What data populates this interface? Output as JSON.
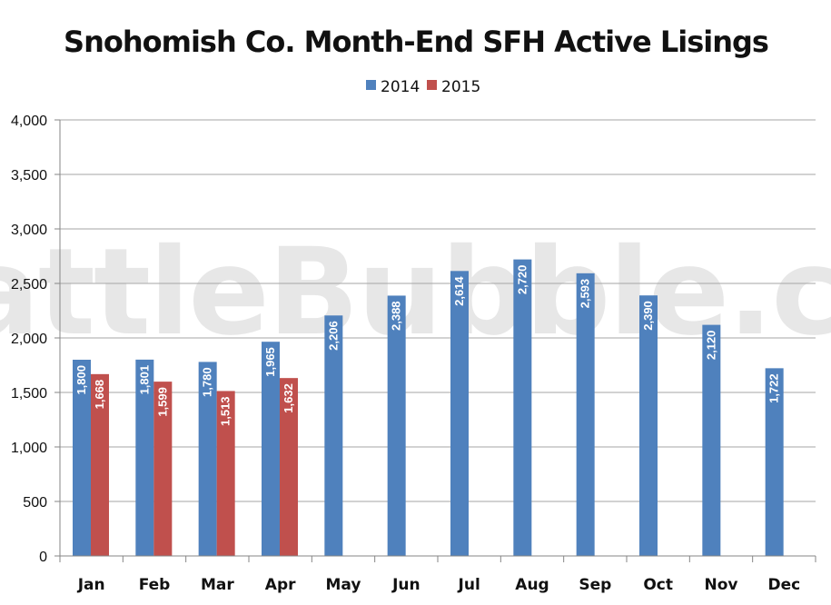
{
  "chart_data": {
    "type": "bar",
    "title": "Snohomish Co. Month-End SFH Active Lisings",
    "watermark": "SeattleBubble.com",
    "categories": [
      "Jan",
      "Feb",
      "Mar",
      "Apr",
      "May",
      "Jun",
      "Jul",
      "Aug",
      "Sep",
      "Oct",
      "Nov",
      "Dec"
    ],
    "series": [
      {
        "name": "2014",
        "color": "#4f81bd",
        "values": [
          1800,
          1801,
          1780,
          1965,
          2206,
          2388,
          2614,
          2720,
          2593,
          2390,
          2120,
          1722
        ]
      },
      {
        "name": "2015",
        "color": "#c0504d",
        "values": [
          1668,
          1599,
          1513,
          1632,
          null,
          null,
          null,
          null,
          null,
          null,
          null,
          null
        ]
      }
    ],
    "data_labels": [
      [
        "1,800",
        "1,801",
        "1,780",
        "1,965",
        "2,206",
        "2,388",
        "2,614",
        "2,720",
        "2,593",
        "2,390",
        "2,120",
        "1,722"
      ],
      [
        "1,668",
        "1,599",
        "1,513",
        "1,632",
        null,
        null,
        null,
        null,
        null,
        null,
        null,
        null
      ]
    ],
    "ylim": [
      0,
      4000
    ],
    "yticks": [
      0,
      500,
      1000,
      1500,
      2000,
      2500,
      3000,
      3500,
      4000
    ],
    "ytick_labels": [
      "0",
      "500",
      "1,000",
      "1,500",
      "2,000",
      "2,500",
      "3,000",
      "3,500",
      "4,000"
    ],
    "grid": true,
    "legend_position": "top-center",
    "colors": {
      "gridline": "#a6a6a6",
      "axis": "#868686"
    }
  }
}
